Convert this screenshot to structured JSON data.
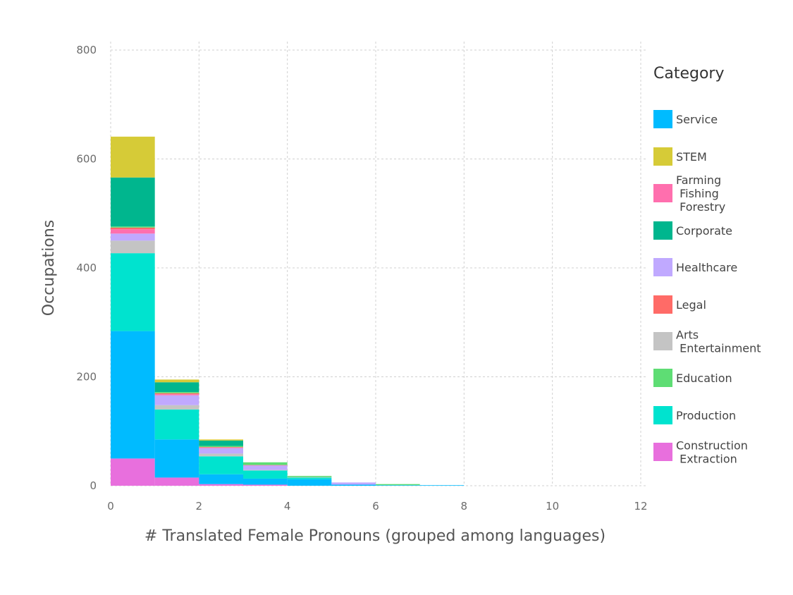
{
  "chart_data": {
    "type": "bar",
    "stacked": true,
    "title": "",
    "xlabel": "# Translated Female Pronouns (grouped among languages)",
    "ylabel": "Occupations",
    "xlim": [
      0,
      12
    ],
    "ylim": [
      0,
      800
    ],
    "xticks": [
      0,
      2,
      4,
      6,
      8,
      10,
      12
    ],
    "yticks": [
      0,
      200,
      400,
      600,
      800
    ],
    "grid": true,
    "legend_position": "right",
    "legend_title": "Category",
    "bins": [
      [
        0,
        1
      ],
      [
        1,
        2
      ],
      [
        2,
        3
      ],
      [
        3,
        4
      ],
      [
        4,
        5
      ],
      [
        5,
        6
      ],
      [
        6,
        7
      ],
      [
        7,
        8
      ]
    ],
    "series": [
      {
        "name": "Construction\n Extraction",
        "color": "#E86FDD",
        "values": [
          50,
          15,
          3,
          2,
          0,
          0,
          0,
          0
        ]
      },
      {
        "name": "Production",
        "color": "#00E3CF",
        "values": [
          143,
          55,
          33,
          15,
          3,
          0,
          0,
          0
        ]
      },
      {
        "name": "Education",
        "color": "#5EDD74",
        "values": [
          2,
          2,
          2,
          5,
          2,
          0,
          2,
          0
        ]
      },
      {
        "name": "Arts\n Entertainment",
        "color": "#C4C4C4",
        "values": [
          23,
          8,
          5,
          1,
          1,
          0,
          0,
          0
        ]
      },
      {
        "name": "Legal",
        "color": "#FF6B67",
        "values": [
          3,
          2,
          1,
          0,
          0,
          0,
          0,
          0
        ]
      },
      {
        "name": "Healthcare",
        "color": "#C0A9FF",
        "values": [
          13,
          18,
          10,
          8,
          0,
          4,
          0,
          0
        ]
      },
      {
        "name": "Corporate",
        "color": "#00B68E",
        "values": [
          90,
          18,
          10,
          0,
          0,
          0,
          0,
          0
        ]
      },
      {
        "name": "Farming\n Fishing\n Forestry",
        "color": "#FF6FAE",
        "values": [
          8,
          2,
          1,
          1,
          0,
          0,
          0,
          0
        ]
      },
      {
        "name": "STEM",
        "color": "#D6CB37",
        "values": [
          75,
          5,
          2,
          0,
          0,
          0,
          0,
          0
        ]
      },
      {
        "name": "Service",
        "color": "#00BBFF",
        "values": [
          234,
          70,
          18,
          11,
          12,
          2,
          1,
          1
        ]
      }
    ],
    "stack_order": [
      "Construction\n Extraction",
      "Service",
      "Production",
      "Arts\n Entertainment",
      "Healthcare",
      "Farming\n Fishing\n Forestry",
      "Legal",
      "Education",
      "Corporate",
      "STEM"
    ],
    "legend_order": [
      "Service",
      "STEM",
      "Farming\n Fishing\n Forestry",
      "Corporate",
      "Healthcare",
      "Legal",
      "Arts\n Entertainment",
      "Education",
      "Production",
      "Construction\n Extraction"
    ]
  }
}
